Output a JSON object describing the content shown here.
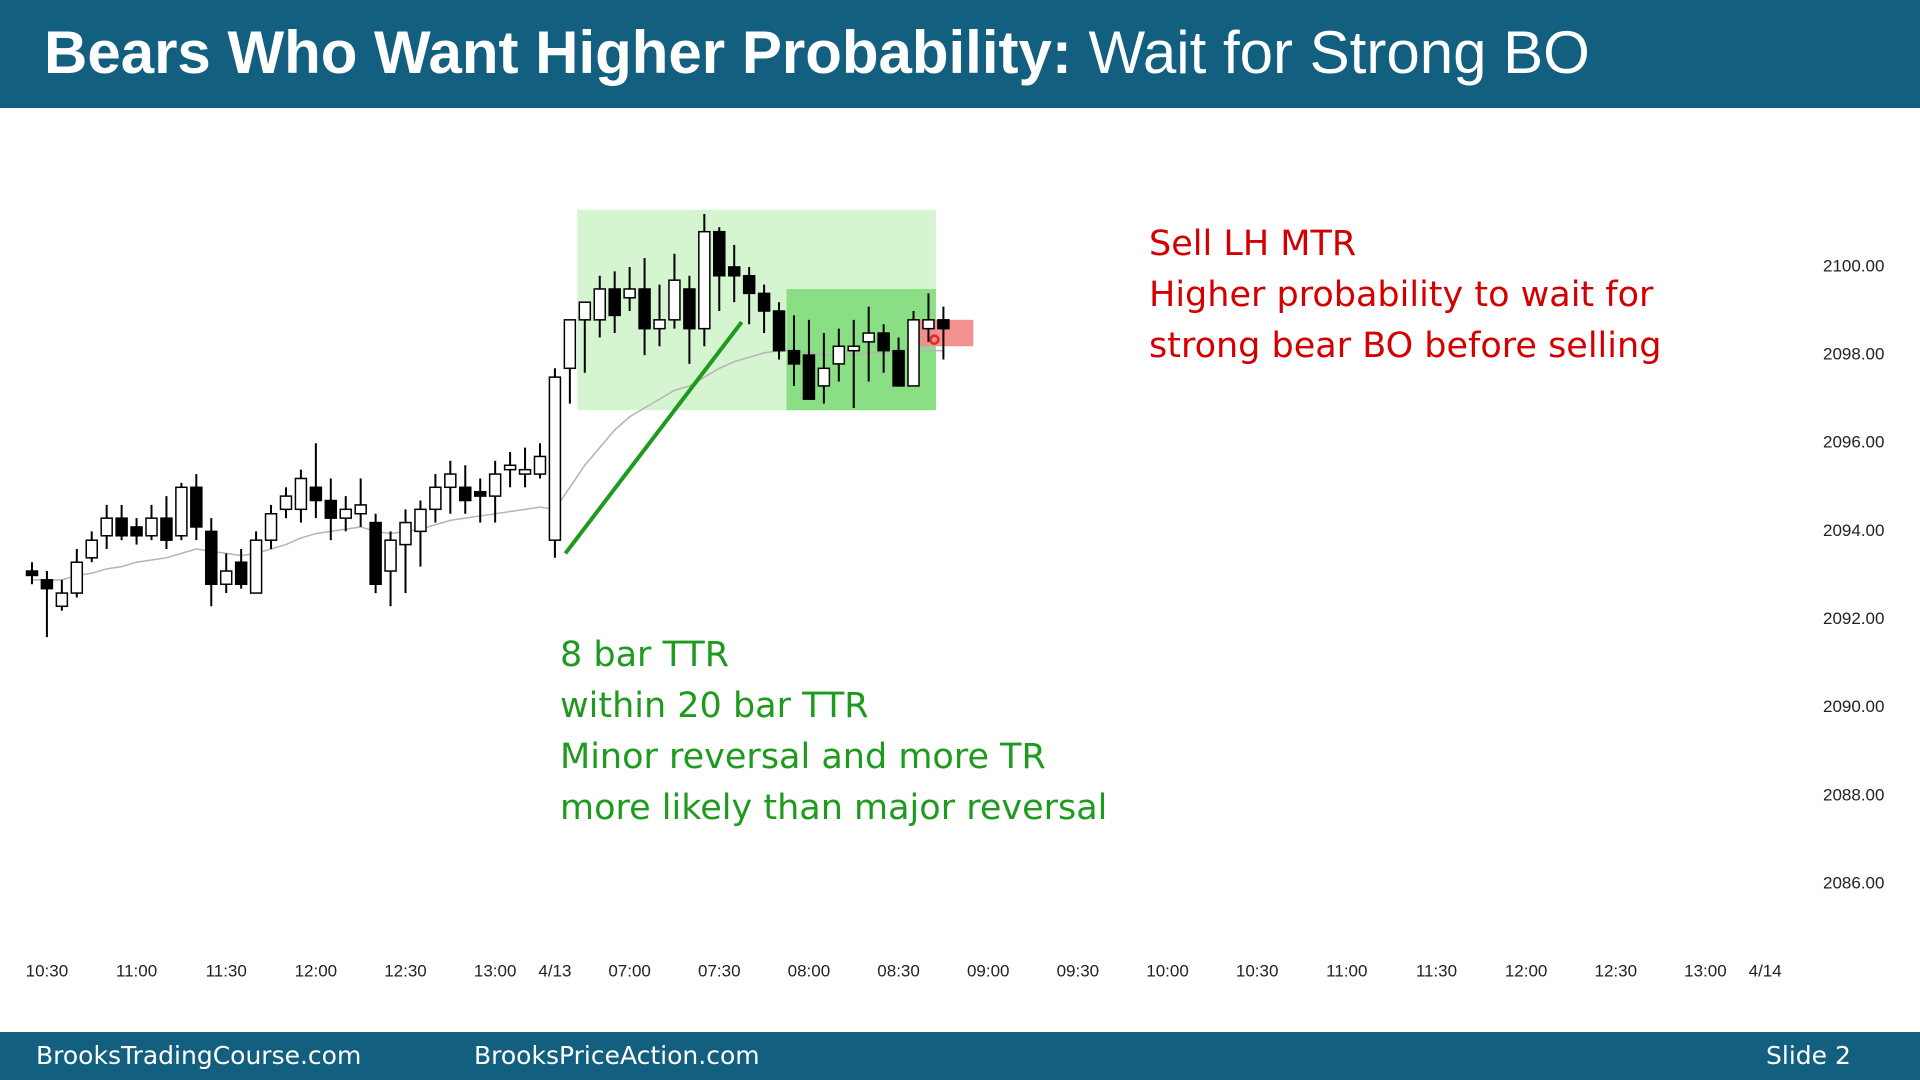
{
  "header": {
    "title_bold": "Bears Who Want Higher Probability:",
    "title_rest": "Wait for Strong BO"
  },
  "footer": {
    "left": "BrooksTradingCourse.com",
    "center": "BrooksPriceAction.com",
    "slide": "Slide  2"
  },
  "chart_data": {
    "type": "candlestick",
    "xlim": [
      -0.5,
      119
    ],
    "xticks": [
      {
        "value": 1,
        "label": "10:30"
      },
      {
        "value": 7,
        "label": "11:00"
      },
      {
        "value": 13,
        "label": "11:30"
      },
      {
        "value": 19,
        "label": "12:00"
      },
      {
        "value": 25,
        "label": "12:30"
      },
      {
        "value": 31,
        "label": "13:00"
      },
      {
        "value": 35,
        "label": "4/13"
      },
      {
        "value": 40,
        "label": "07:00"
      },
      {
        "value": 46,
        "label": "07:30"
      },
      {
        "value": 52,
        "label": "08:00"
      },
      {
        "value": 58,
        "label": "08:30"
      },
      {
        "value": 64,
        "label": "09:00"
      },
      {
        "value": 70,
        "label": "09:30"
      },
      {
        "value": 76,
        "label": "10:00"
      },
      {
        "value": 82,
        "label": "10:30"
      },
      {
        "value": 88,
        "label": "11:00"
      },
      {
        "value": 94,
        "label": "11:30"
      },
      {
        "value": 100,
        "label": "12:00"
      },
      {
        "value": 106,
        "label": "12:30"
      },
      {
        "value": 112,
        "label": "13:00"
      },
      {
        "value": 116,
        "label": "4/14"
      }
    ],
    "ylim": [
      2085,
      2103.5
    ],
    "yticks": [
      {
        "value": 2086,
        "label": "2086.00"
      },
      {
        "value": 2088,
        "label": "2088.00"
      },
      {
        "value": 2090,
        "label": "2090.00"
      },
      {
        "value": 2092,
        "label": "2092.00"
      },
      {
        "value": 2094,
        "label": "2094.00"
      },
      {
        "value": 2096,
        "label": "2096.00"
      },
      {
        "value": 2098,
        "label": "2098.00"
      },
      {
        "value": 2100,
        "label": "2100.00"
      }
    ],
    "open": [
      2093.1,
      2092.9,
      2092.3,
      2092.6,
      2093.4,
      2093.9,
      2094.3,
      2094.1,
      2093.9,
      2094.3,
      2093.9,
      2095.0,
      2094.0,
      2092.8,
      2093.3,
      2092.6,
      2093.8,
      2094.5,
      2094.5,
      2095.0,
      2094.7,
      2094.3,
      2094.4,
      2094.2,
      2093.1,
      2093.7,
      2094.0,
      2094.5,
      2095.0,
      2095.0,
      2094.9,
      2094.8,
      2095.4,
      2095.3,
      2095.3,
      2093.8,
      2097.7,
      2098.8,
      2098.8,
      2099.5,
      2099.3,
      2099.5,
      2098.6,
      2098.8,
      2099.5,
      2098.6,
      2100.8,
      2100.0,
      2099.8,
      2099.4,
      2099.0,
      2098.1,
      2098.0,
      2097.3,
      2097.8,
      2098.1,
      2098.3,
      2098.5,
      2098.1,
      2097.3,
      2098.6,
      2098.8
    ],
    "high": [
      2093.3,
      2093.1,
      2092.9,
      2093.6,
      2094.0,
      2094.6,
      2094.6,
      2094.3,
      2094.6,
      2094.8,
      2095.1,
      2095.3,
      2094.3,
      2093.5,
      2093.6,
      2094.0,
      2094.6,
      2095.0,
      2095.4,
      2096.0,
      2095.2,
      2094.8,
      2095.2,
      2094.4,
      2094.0,
      2094.5,
      2094.7,
      2095.3,
      2095.6,
      2095.5,
      2095.2,
      2095.6,
      2095.8,
      2095.9,
      2096.0,
      2097.7,
      2098.8,
      2099.2,
      2099.8,
      2099.9,
      2100.0,
      2100.2,
      2099.6,
      2100.3,
      2099.8,
      2101.2,
      2100.9,
      2100.5,
      2100.0,
      2099.6,
      2099.2,
      2098.9,
      2098.8,
      2098.5,
      2098.6,
      2098.8,
      2099.1,
      2098.7,
      2098.4,
      2099.0,
      2099.4,
      2099.1
    ],
    "low": [
      2092.8,
      2091.6,
      2092.2,
      2092.5,
      2093.3,
      2093.6,
      2093.8,
      2093.7,
      2093.8,
      2093.6,
      2093.8,
      2093.8,
      2092.3,
      2092.6,
      2092.7,
      2092.6,
      2093.6,
      2094.3,
      2094.2,
      2094.3,
      2093.8,
      2094.0,
      2094.1,
      2092.6,
      2092.3,
      2092.6,
      2093.2,
      2094.2,
      2094.4,
      2094.4,
      2094.2,
      2094.2,
      2095.0,
      2095.0,
      2095.2,
      2093.4,
      2096.9,
      2097.6,
      2098.4,
      2098.5,
      2099.0,
      2098.0,
      2098.2,
      2098.6,
      2097.8,
      2098.2,
      2099.0,
      2099.2,
      2098.7,
      2098.5,
      2097.9,
      2097.3,
      2097.0,
      2096.9,
      2097.4,
      2096.8,
      2097.4,
      2097.6,
      2097.3,
      2097.3,
      2098.3,
      2097.9
    ],
    "close": [
      2093.0,
      2092.7,
      2092.6,
      2093.3,
      2093.8,
      2094.3,
      2093.9,
      2093.9,
      2094.3,
      2093.8,
      2095.0,
      2094.1,
      2092.8,
      2093.1,
      2092.8,
      2093.8,
      2094.4,
      2094.8,
      2095.2,
      2094.7,
      2094.3,
      2094.5,
      2094.6,
      2092.8,
      2093.8,
      2094.2,
      2094.5,
      2095.0,
      2095.3,
      2094.7,
      2094.8,
      2095.3,
      2095.5,
      2095.4,
      2095.7,
      2097.5,
      2098.8,
      2099.2,
      2099.5,
      2098.9,
      2099.5,
      2098.6,
      2098.8,
      2099.7,
      2098.6,
      2100.8,
      2099.8,
      2099.8,
      2099.4,
      2099.0,
      2098.1,
      2097.8,
      2097.0,
      2097.7,
      2098.2,
      2098.2,
      2098.5,
      2098.1,
      2097.3,
      2098.8,
      2098.8,
      2098.6
    ],
    "moving_average": {
      "color": "#b4b4b4",
      "values": [
        2092.9,
        2092.9,
        2092.9,
        2093.0,
        2093.05,
        2093.15,
        2093.2,
        2093.3,
        2093.35,
        2093.4,
        2093.5,
        2093.6,
        2093.55,
        2093.5,
        2093.45,
        2093.5,
        2093.6,
        2093.7,
        2093.85,
        2093.95,
        2094.0,
        2094.05,
        2094.1,
        2094.0,
        2093.95,
        2094.0,
        2094.05,
        2094.15,
        2094.25,
        2094.3,
        2094.35,
        2094.4,
        2094.45,
        2094.5,
        2094.55,
        2094.5,
        2095.0,
        2095.5,
        2095.9,
        2096.3,
        2096.6,
        2096.8,
        2097.0,
        2097.2,
        2097.3,
        2097.5,
        2097.7,
        2097.85,
        2097.95,
        2098.05,
        2098.1,
        2098.1,
        2098.05,
        2098.0,
        2098.0,
        2098.0,
        2098.05,
        2098.05,
        2098.0,
        2098.05,
        2098.1,
        2098.1
      ]
    },
    "zones": [
      {
        "x": [
          36.5,
          60.5
        ],
        "y": [
          2096.75,
          2101.3
        ],
        "color": "#d3f4cf"
      },
      {
        "x": [
          50.5,
          60.5
        ],
        "y": [
          2096.75,
          2099.5
        ],
        "color": "#86dc7e"
      },
      {
        "x": [
          59.2,
          63
        ],
        "y": [
          2098.2,
          2098.8
        ],
        "color": "#f28a8a"
      }
    ],
    "trend_line": {
      "x": [
        35.7,
        47.5
      ],
      "y": [
        2093.5,
        2098.75
      ],
      "color": "#1e9a1e"
    },
    "marker": {
      "x": 60.4,
      "y": 2098.35,
      "color": "#e02828"
    },
    "annotations": [
      {
        "color": "#1e9a1e",
        "lines": [
          "8 bar TTR",
          "within 20 bar TTR",
          "Minor reversal and more TR",
          "more likely than major reversal"
        ]
      },
      {
        "color": "#d40000",
        "lines": [
          "Sell LH MTR",
          "Higher probability to wait for",
          "strong bear BO before selling"
        ]
      }
    ]
  }
}
